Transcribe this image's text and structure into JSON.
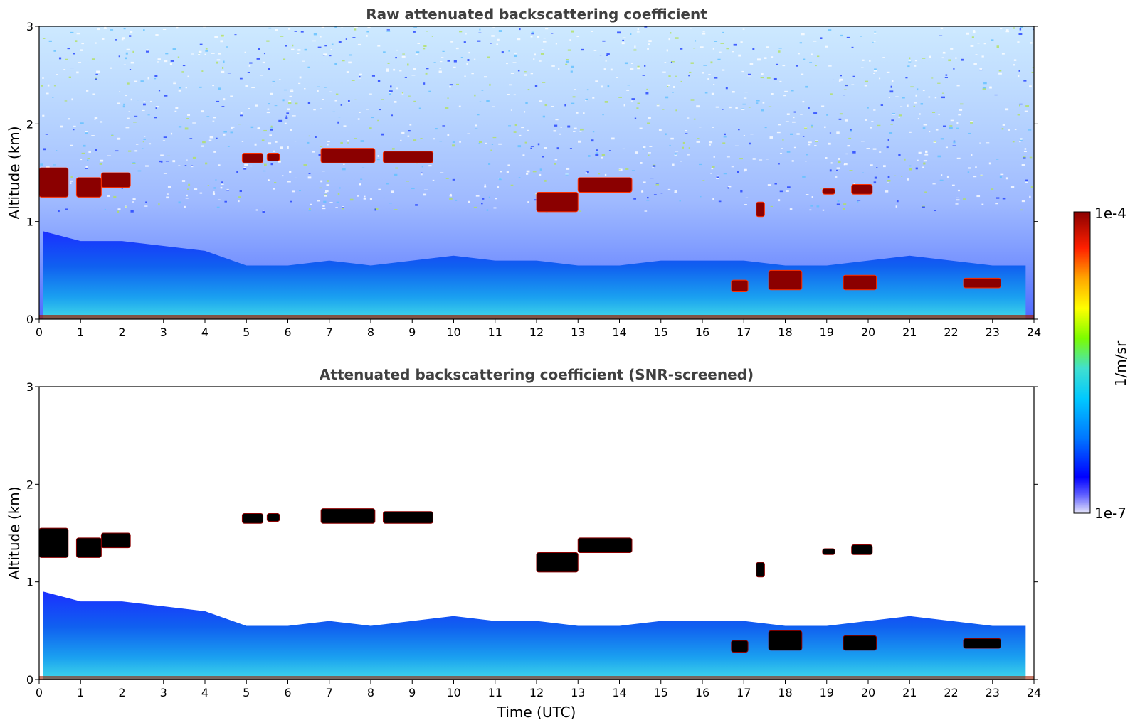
{
  "chart_data": [
    {
      "type": "heatmap",
      "title": "Raw attenuated backscattering coefficient",
      "xlabel": "",
      "ylabel": "Altitude (km)",
      "xlim": [
        0,
        24
      ],
      "ylim": [
        0,
        3
      ],
      "xticks": [
        "0",
        "1",
        "2",
        "3",
        "4",
        "5",
        "6",
        "7",
        "8",
        "9",
        "10",
        "11",
        "12",
        "13",
        "14",
        "15",
        "16",
        "17",
        "18",
        "19",
        "20",
        "21",
        "22",
        "23",
        "24"
      ],
      "yticks": [
        "0",
        "1",
        "2",
        "3"
      ],
      "layers": [
        {
          "name": "boundary layer top",
          "t": [
            0.1,
            1.0,
            2.0,
            3.0,
            4.0,
            5.0,
            6.0,
            7.0,
            8.0,
            9.0,
            10.0,
            11.0,
            12.0,
            13.0,
            14.0,
            15.0,
            16.0,
            17.0,
            18.0,
            19.0,
            20.0,
            21.0,
            22.0,
            23.0,
            23.8
          ],
          "h": [
            0.9,
            0.8,
            0.8,
            0.75,
            0.7,
            0.55,
            0.55,
            0.6,
            0.55,
            0.6,
            0.65,
            0.6,
            0.6,
            0.55,
            0.55,
            0.6,
            0.6,
            0.6,
            0.55,
            0.55,
            0.6,
            0.65,
            0.6,
            0.55,
            0.55
          ]
        },
        {
          "name": "cloud layers",
          "segments": [
            [
              0.0,
              0.7,
              1.25,
              1.55
            ],
            [
              0.9,
              1.5,
              1.25,
              1.45
            ],
            [
              1.5,
              2.2,
              1.35,
              1.5
            ],
            [
              4.9,
              5.4,
              1.6,
              1.7
            ],
            [
              5.5,
              5.8,
              1.62,
              1.7
            ],
            [
              6.8,
              8.1,
              1.6,
              1.75
            ],
            [
              8.3,
              9.5,
              1.6,
              1.72
            ],
            [
              12.0,
              13.0,
              1.1,
              1.3
            ],
            [
              13.0,
              14.3,
              1.3,
              1.45
            ],
            [
              16.7,
              17.1,
              0.28,
              0.4
            ],
            [
              17.3,
              17.5,
              1.05,
              1.2
            ],
            [
              17.6,
              18.4,
              0.3,
              0.5
            ],
            [
              18.9,
              19.2,
              1.28,
              1.34
            ],
            [
              19.4,
              20.2,
              0.3,
              0.45
            ],
            [
              19.6,
              20.1,
              1.28,
              1.38
            ],
            [
              22.3,
              23.2,
              0.32,
              0.42
            ]
          ]
        }
      ]
    },
    {
      "type": "heatmap",
      "title": "Attenuated backscattering coefficient (SNR-screened)",
      "xlabel": "Time (UTC)",
      "ylabel": "Altitude (km)",
      "xlim": [
        0,
        24
      ],
      "ylim": [
        0,
        3
      ],
      "xticks": [
        "0",
        "1",
        "2",
        "3",
        "4",
        "5",
        "6",
        "7",
        "8",
        "9",
        "10",
        "11",
        "12",
        "13",
        "14",
        "15",
        "16",
        "17",
        "18",
        "19",
        "20",
        "21",
        "22",
        "23",
        "24"
      ],
      "yticks": [
        "0",
        "1",
        "2",
        "3"
      ]
    }
  ],
  "colorbar": {
    "label": "1/m/sr",
    "max_label": "1e-4",
    "min_label": "1e-7",
    "colors": [
      "#e6e6fa",
      "#0000ff",
      "#0077ff",
      "#00c8ff",
      "#40e0d0",
      "#7cfc00",
      "#ffff00",
      "#ffa500",
      "#ff2000",
      "#8b0000"
    ]
  }
}
